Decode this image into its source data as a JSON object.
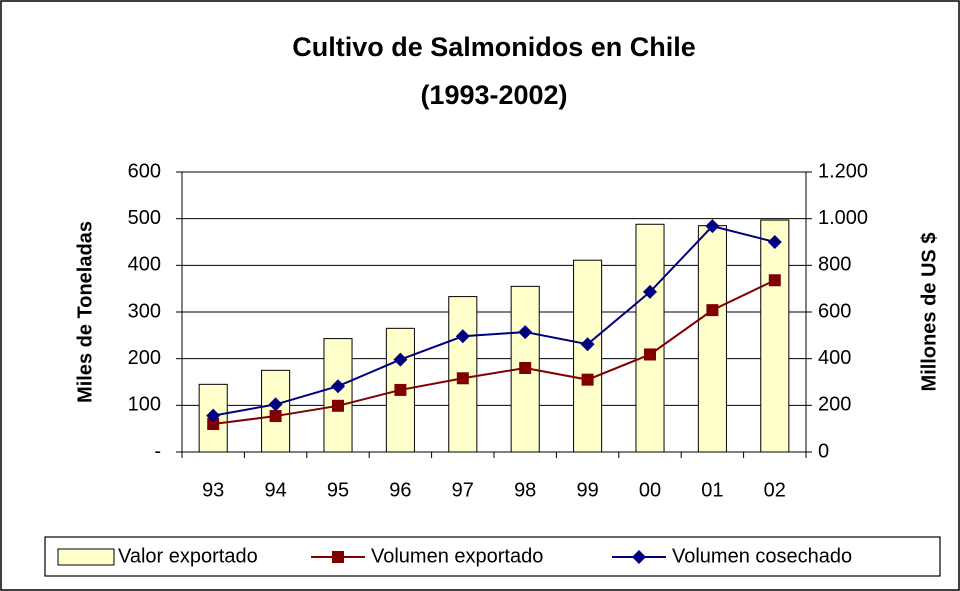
{
  "chart_data": {
    "type": "bar-line",
    "title": "Cultivo de Salmonidos en Chile",
    "subtitle": "(1993-2002)",
    "ylabel": "Miles de Toneladas",
    "y2label": "Millones de US $",
    "categories": [
      "93",
      "94",
      "95",
      "96",
      "97",
      "98",
      "99",
      "00",
      "01",
      "02"
    ],
    "series": [
      {
        "name": "Valor exportado",
        "type": "bar",
        "axis": "y2",
        "color": "#ffffcc",
        "values": [
          290,
          350,
          486,
          530,
          666,
          710,
          822,
          976,
          970,
          994
        ]
      },
      {
        "name": "Volumen  exportado",
        "type": "line",
        "marker": "square",
        "color": "#800000",
        "values": [
          60,
          77,
          99,
          133,
          158,
          180,
          155,
          209,
          304,
          368
        ]
      },
      {
        "name": "Volumen cosechado",
        "type": "line",
        "marker": "diamond",
        "color": "#000080",
        "values": [
          78,
          102,
          141,
          198,
          248,
          257,
          231,
          343,
          484,
          450
        ]
      }
    ],
    "ylim": [
      0,
      600
    ],
    "yticks": [
      {
        "value": 0,
        "label": "-"
      },
      100,
      200,
      300,
      400,
      500,
      600
    ],
    "y2lim": [
      0,
      1200
    ],
    "y2ticks": [
      0,
      200,
      400,
      600,
      800,
      {
        "value": 1000,
        "label": "1.000"
      },
      {
        "value": 1200,
        "label": "1.200"
      }
    ],
    "grid": true,
    "legend": "bottom"
  }
}
